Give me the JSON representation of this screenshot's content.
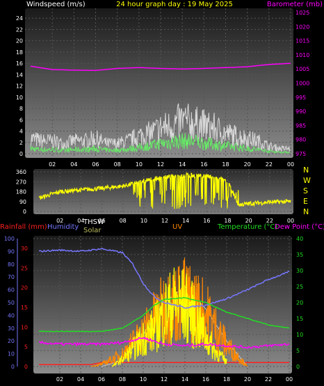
{
  "header": {
    "left": "Windspeed (m/s)",
    "center": "24 hour graph day : 19 May 2025",
    "right": "Barometer (mb)"
  },
  "bottom_header": {
    "rainfall": "Rainfall (mm)",
    "humidity": "Humidity",
    "thsw": "THSW",
    "solar": "Solar",
    "uv": "UV",
    "temperature": "Temperature (°C)",
    "dewpoint": "Dew Point (°C)"
  },
  "colors": {
    "windspeed_label": "#ffffff",
    "title": "#ffff00",
    "barometer": "#ff00ff",
    "gust": "#d8d8d8",
    "avg_wind": "#66ee66",
    "direction": "#ffff00",
    "rainfall": "#ff2020",
    "humidity": "#7777ff",
    "temperature": "#22dd22",
    "dewpoint": "#ff00ff",
    "solar": "#ffff00",
    "uv": "#ff8800",
    "thsw": "#cccccc"
  },
  "chart_data": [
    {
      "type": "line",
      "x_ticks": [
        "02",
        "04",
        "06",
        "08",
        "10",
        "12",
        "14",
        "16",
        "18",
        "20",
        "22",
        "00"
      ],
      "y_ticks_left": [
        "0",
        "2",
        "4",
        "6",
        "8",
        "10",
        "12",
        "14",
        "16",
        "18",
        "20",
        "22",
        "24"
      ],
      "y_ticks_right": [
        "975",
        "980",
        "985",
        "990",
        "995",
        "1000",
        "1005",
        "1010",
        "1015",
        "1020",
        "1025"
      ],
      "ylim_left": [
        0,
        25
      ],
      "ylim_right": [
        975,
        1025
      ],
      "grid": true,
      "series": [
        {
          "axis": "right",
          "x_hours": [
            0,
            2,
            4,
            6,
            8,
            10,
            12,
            14,
            16,
            18,
            20,
            22,
            24
          ],
          "values": [
            1006,
            1004.8,
            1004.6,
            1004.5,
            1005.2,
            1005.5,
            1005.2,
            1005,
            1005.2,
            1005.5,
            1005.8,
            1006.6,
            1007
          ]
        },
        {
          "axis": "left",
          "x_hours": [
            0,
            1,
            2,
            3,
            4,
            5,
            6,
            7,
            8,
            9,
            10,
            11,
            12,
            13,
            14,
            15,
            16,
            17,
            18,
            19,
            20,
            21,
            22,
            23,
            24
          ],
          "values": [
            3,
            2.5,
            2.5,
            2,
            2.5,
            2.5,
            3,
            2,
            2,
            2.5,
            3.5,
            4,
            5,
            5.5,
            6.5,
            6,
            5.5,
            5,
            4,
            3.5,
            3,
            2.5,
            1.5,
            1,
            1
          ]
        },
        {
          "axis": "left",
          "x_hours": [
            0,
            1,
            2,
            3,
            4,
            5,
            6,
            7,
            8,
            9,
            10,
            11,
            12,
            13,
            14,
            15,
            16,
            17,
            18,
            19,
            20,
            21,
            22,
            23,
            24
          ],
          "values": [
            1,
            0.8,
            0.8,
            0.6,
            0.8,
            0.8,
            1,
            0.7,
            0.7,
            0.9,
            1.2,
            1.5,
            2,
            2.3,
            2.5,
            2.4,
            2.1,
            1.8,
            1.5,
            1.3,
            1,
            0.8,
            0.5,
            0.3,
            0.3
          ]
        }
      ]
    },
    {
      "type": "line",
      "x_ticks": [
        "02",
        "04",
        "06",
        "08",
        "10",
        "12",
        "14",
        "16",
        "18",
        "20",
        "22",
        "00"
      ],
      "y_ticks": [
        "0",
        "90",
        "180",
        "270",
        "360"
      ],
      "direction_labels": [
        "N",
        "W",
        "S",
        "E",
        "N"
      ],
      "ylim": [
        0,
        360
      ],
      "grid": true,
      "series": [
        {
          "x_hours": [
            0,
            2,
            4,
            6,
            8,
            9,
            10,
            12,
            14,
            16,
            18,
            19,
            20,
            22,
            24
          ],
          "values": [
            120,
            180,
            195,
            210,
            230,
            250,
            280,
            310,
            330,
            320,
            280,
            60,
            70,
            85,
            90
          ]
        }
      ]
    },
    {
      "type": "line",
      "x_ticks": [
        "02",
        "04",
        "06",
        "08",
        "10",
        "12",
        "14",
        "16",
        "18",
        "20",
        "22",
        "00"
      ],
      "y_ticks_humidity": [
        "0",
        "10",
        "20",
        "30",
        "40",
        "50",
        "60",
        "70",
        "80",
        "90",
        "100"
      ],
      "y_ticks_rain": [
        "0",
        "5",
        "10",
        "15",
        "20",
        "25",
        "30"
      ],
      "y_ticks_temp": [
        "0",
        "5",
        "10",
        "15",
        "20",
        "25",
        "30",
        "35",
        "40"
      ],
      "humidity_lim": [
        0,
        100
      ],
      "rain_lim": [
        0,
        30
      ],
      "temp_lim": [
        0,
        40
      ],
      "grid": true,
      "series": [
        {
          "axis": "humidity",
          "x_hours": [
            0,
            2,
            4,
            6,
            8,
            9,
            10,
            11,
            12,
            14,
            16,
            18,
            20,
            22,
            24
          ],
          "values": [
            90,
            91,
            90,
            92,
            89,
            80,
            65,
            55,
            50,
            46,
            48,
            53,
            60,
            68,
            74
          ]
        },
        {
          "axis": "temp",
          "x_hours": [
            0,
            2,
            4,
            6,
            8,
            10,
            11,
            12,
            14,
            16,
            18,
            20,
            22,
            24
          ],
          "values": [
            11,
            11,
            11,
            11,
            12,
            16,
            19,
            21,
            21.5,
            20,
            17,
            15,
            13,
            12
          ]
        },
        {
          "axis": "temp",
          "x_hours": [
            0,
            2,
            4,
            6,
            8,
            10,
            12,
            14,
            16,
            18,
            20,
            22,
            24
          ],
          "values": [
            7.5,
            7,
            7,
            7,
            7.5,
            9,
            7,
            6.5,
            7,
            6.5,
            6,
            6.5,
            7
          ]
        },
        {
          "axis": "rain",
          "x_hours": [
            0,
            5,
            6,
            24
          ],
          "values": [
            0.5,
            0.5,
            1,
            1
          ]
        },
        {
          "axis": "temp",
          "x_hours": [
            5,
            6,
            8,
            10,
            12,
            14,
            16,
            18,
            20
          ],
          "values": [
            0,
            1,
            5,
            14,
            24,
            28,
            22,
            9,
            0
          ]
        },
        {
          "axis": "temp",
          "x_hours": [
            6,
            8,
            10,
            12,
            14,
            16,
            18,
            20
          ],
          "values": [
            0,
            2,
            10,
            20,
            25,
            18,
            8,
            0
          ]
        },
        {
          "axis": "temp",
          "x_hours": [
            7,
            8,
            9,
            10,
            11,
            12,
            13,
            14,
            15,
            16,
            17,
            18
          ],
          "values": [
            0,
            3,
            7,
            12,
            15,
            22,
            26,
            25,
            20,
            12,
            6,
            2
          ]
        }
      ]
    }
  ]
}
